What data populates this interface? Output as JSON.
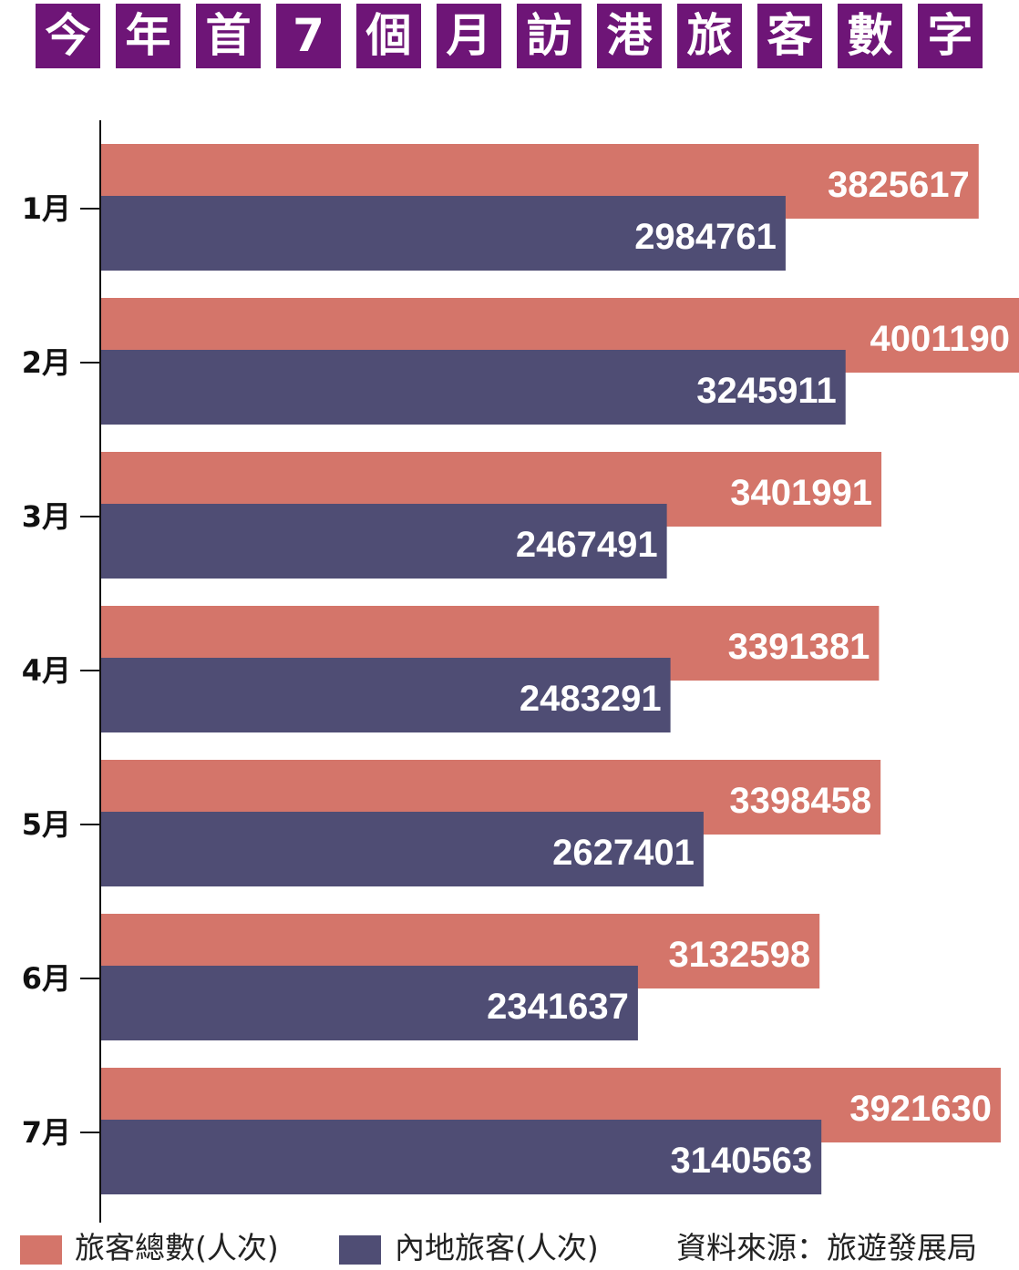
{
  "title_chars": [
    "今",
    "年",
    "首",
    "7",
    "個",
    "月",
    "訪",
    "港",
    "旅",
    "客",
    "數",
    "字"
  ],
  "colors": {
    "title_bg": "#6e1577",
    "total": "#d4756a",
    "mainland": "#4f4d74"
  },
  "legend": {
    "total": "旅客總數(人次)",
    "mainland": "內地旅客(人次)"
  },
  "source": "資料來源：旅遊發展局",
  "chart_data": {
    "type": "bar",
    "orientation": "horizontal",
    "title": "今年首7個月訪港旅客數字",
    "categories": [
      "1月",
      "2月",
      "3月",
      "4月",
      "5月",
      "6月",
      "7月"
    ],
    "series": [
      {
        "name": "旅客總數(人次)",
        "values": [
          3825617,
          4001190,
          3401991,
          3391381,
          3398458,
          3132598,
          3921630
        ]
      },
      {
        "name": "內地旅客(人次)",
        "values": [
          2984761,
          3245911,
          2467491,
          2483291,
          2627401,
          2341637,
          3140563
        ]
      }
    ],
    "data_labels": true,
    "grid": false,
    "legend_position": "bottom"
  }
}
